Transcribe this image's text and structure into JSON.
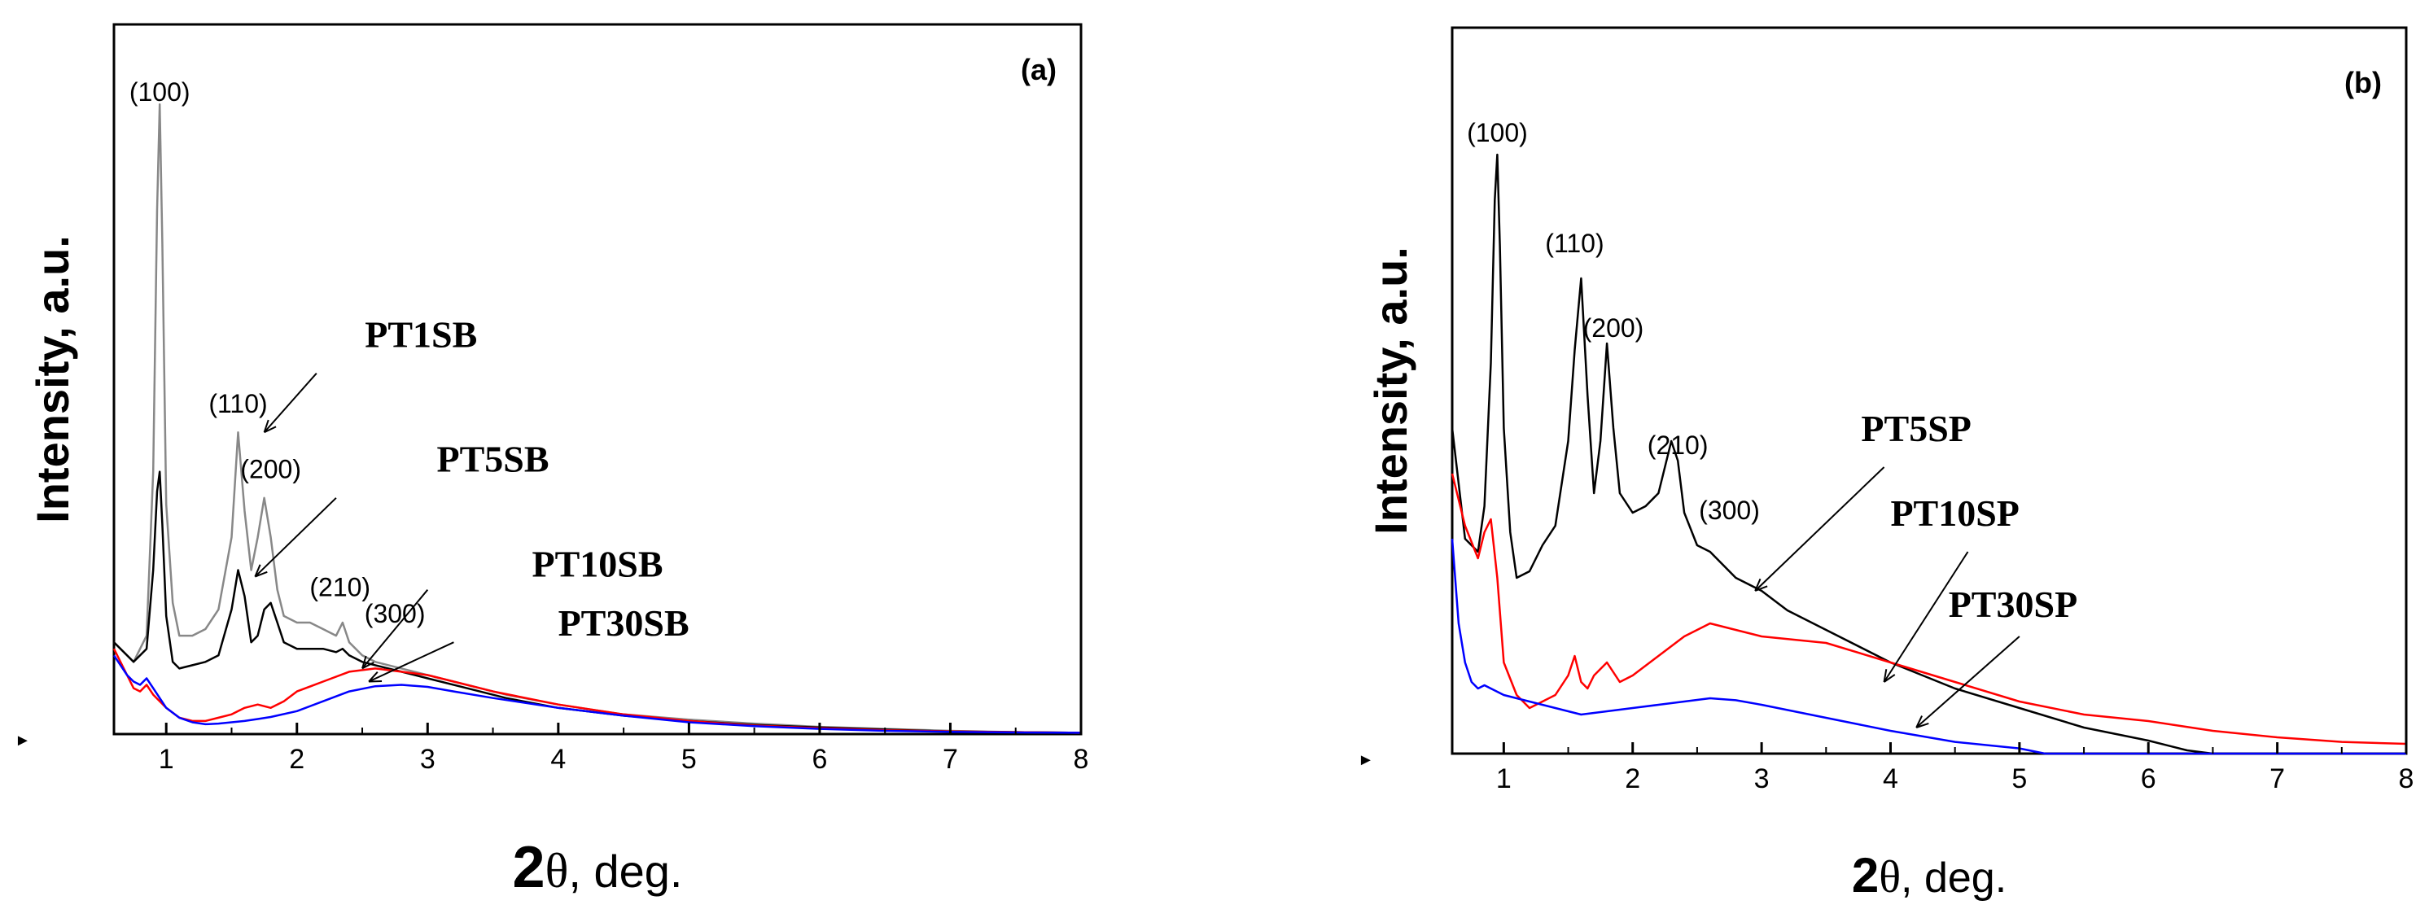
{
  "chart_data": [
    {
      "type": "line",
      "panel_label": "(a)",
      "xlabel_prefix": "2",
      "xlabel_theta": "θ",
      "xlabel_suffix": ", deg.",
      "ylabel": "Intensity, a.u.",
      "xlim": [
        0.6,
        8
      ],
      "ylim": [
        0,
        100
      ],
      "x_ticks": [
        "1",
        "2",
        "3",
        "4",
        "5",
        "6",
        "7",
        "8"
      ],
      "x_tick_values": [
        1,
        2,
        3,
        4,
        5,
        6,
        7,
        8
      ],
      "peak_labels": [
        {
          "text": "(100)",
          "x": 0.95,
          "y": 96.5
        },
        {
          "text": "(110)",
          "x": 1.55,
          "y": 49
        },
        {
          "text": "(200)",
          "x": 1.8,
          "y": 39
        },
        {
          "text": "(210)",
          "x": 2.33,
          "y": 21
        },
        {
          "text": "(300)",
          "x": 2.75,
          "y": 17
        }
      ],
      "series_labels": [
        {
          "text": "PT1SB",
          "x": 2.95,
          "y": 59
        },
        {
          "text": "PT5SB",
          "x": 3.5,
          "y": 40
        },
        {
          "text": "PT10SB",
          "x": 4.3,
          "y": 24
        },
        {
          "text": "PT30SB",
          "x": 4.5,
          "y": 15
        }
      ],
      "arrows": [
        {
          "x1": 2.15,
          "y1": 55,
          "x2": 1.75,
          "y2": 46
        },
        {
          "x1": 2.3,
          "y1": 36,
          "x2": 1.68,
          "y2": 24
        },
        {
          "x1": 3.0,
          "y1": 22,
          "x2": 2.5,
          "y2": 10
        },
        {
          "x1": 3.2,
          "y1": 14,
          "x2": 2.55,
          "y2": 8
        }
      ],
      "series": [
        {
          "name": "PT1SB",
          "color": "#888888",
          "x": [
            0.6,
            0.75,
            0.85,
            0.9,
            0.93,
            0.95,
            0.97,
            1.0,
            1.05,
            1.1,
            1.2,
            1.3,
            1.4,
            1.5,
            1.55,
            1.6,
            1.65,
            1.7,
            1.75,
            1.8,
            1.85,
            1.9,
            2.0,
            2.1,
            2.2,
            2.3,
            2.35,
            2.4,
            2.5,
            2.6,
            2.8,
            3.0,
            3.3,
            3.6,
            4.0,
            4.5,
            5.0,
            5.5,
            6.0,
            6.5,
            7.0,
            7.5,
            8.0
          ],
          "y": [
            14,
            11,
            15,
            40,
            80,
            96,
            75,
            35,
            20,
            15,
            15,
            16,
            19,
            30,
            46,
            34,
            25,
            30,
            36,
            30,
            22,
            18,
            17,
            17,
            16,
            15,
            17,
            14,
            12,
            11,
            10,
            9,
            7.5,
            6,
            4.5,
            3,
            2.2,
            1.6,
            1.1,
            0.8,
            0.5,
            0.3,
            0.2
          ]
        },
        {
          "name": "PT5SB",
          "color": "#000000",
          "x": [
            0.6,
            0.75,
            0.85,
            0.9,
            0.93,
            0.95,
            0.97,
            1.0,
            1.05,
            1.1,
            1.2,
            1.3,
            1.4,
            1.5,
            1.55,
            1.6,
            1.65,
            1.7,
            1.75,
            1.8,
            1.85,
            1.9,
            2.0,
            2.1,
            2.2,
            2.3,
            2.35,
            2.4,
            2.5,
            2.6,
            2.8,
            3.0,
            3.3,
            3.6,
            4.0,
            4.5,
            5.0,
            5.5,
            6.0,
            6.5,
            7.0,
            7.5,
            8.0
          ],
          "y": [
            14,
            11,
            13,
            25,
            37,
            40,
            32,
            18,
            11,
            10,
            10.5,
            11,
            12,
            19,
            25,
            21,
            14,
            15,
            19,
            20,
            17,
            14,
            13,
            13,
            13,
            12.5,
            13,
            12,
            11,
            10.5,
            9.5,
            8.5,
            7,
            5.5,
            4,
            2.8,
            2,
            1.4,
            1,
            0.7,
            0.4,
            0.3,
            0.2
          ]
        },
        {
          "name": "PT10SB",
          "color": "#ff0000",
          "x": [
            0.6,
            0.7,
            0.75,
            0.8,
            0.85,
            0.9,
            1.0,
            1.1,
            1.2,
            1.3,
            1.4,
            1.5,
            1.6,
            1.7,
            1.8,
            1.9,
            2.0,
            2.2,
            2.4,
            2.6,
            2.8,
            3.0,
            3.2,
            3.5,
            4.0,
            4.5,
            5.0,
            5.5,
            6.0,
            6.5,
            7.0,
            7.5,
            8.0
          ],
          "y": [
            13,
            9,
            7,
            6.5,
            7.5,
            6,
            4,
            2.5,
            2,
            2,
            2.5,
            3,
            4,
            4.5,
            4,
            5,
            6.5,
            8,
            9.5,
            10,
            9.5,
            9,
            8,
            6.5,
            4.5,
            3,
            2,
            1.3,
            0.9,
            0.6,
            0.4,
            0.3,
            0.2
          ]
        },
        {
          "name": "PT30SB",
          "color": "#0000ff",
          "x": [
            0.6,
            0.7,
            0.75,
            0.8,
            0.85,
            0.9,
            1.0,
            1.1,
            1.2,
            1.3,
            1.4,
            1.5,
            1.6,
            1.7,
            1.8,
            2.0,
            2.2,
            2.4,
            2.6,
            2.8,
            3.0,
            3.2,
            3.5,
            4.0,
            4.5,
            5.0,
            5.5,
            6.0,
            6.5,
            7.0,
            7.5,
            8.0
          ],
          "y": [
            12,
            9,
            8,
            7.5,
            8.5,
            7,
            4,
            2.5,
            1.8,
            1.5,
            1.6,
            1.8,
            2,
            2.3,
            2.6,
            3.5,
            5,
            6.5,
            7.3,
            7.5,
            7.2,
            6.5,
            5.5,
            4,
            2.8,
            1.8,
            1.2,
            0.8,
            0.5,
            0.35,
            0.25,
            0.2
          ]
        }
      ]
    },
    {
      "type": "line",
      "panel_label": "(b)",
      "xlabel_prefix": "2",
      "xlabel_theta": "θ",
      "xlabel_suffix": ", deg.",
      "ylabel": "Intensity, a.u.",
      "xlim": [
        0.6,
        8
      ],
      "ylim": [
        0,
        100
      ],
      "x_ticks": [
        "1",
        "2",
        "3",
        "4",
        "5",
        "6",
        "7",
        "8"
      ],
      "x_tick_values": [
        1,
        2,
        3,
        4,
        5,
        6,
        7,
        8
      ],
      "peak_labels": [
        {
          "text": "(100)",
          "x": 0.95,
          "y": 94
        },
        {
          "text": "(110)",
          "x": 1.55,
          "y": 77
        },
        {
          "text": "(200)",
          "x": 1.85,
          "y": 64
        },
        {
          "text": "(210)",
          "x": 2.35,
          "y": 46
        },
        {
          "text": "(300)",
          "x": 2.75,
          "y": 36
        }
      ],
      "series_labels": [
        {
          "text": "PT5SP",
          "x": 4.2,
          "y": 48
        },
        {
          "text": "PT10SP",
          "x": 4.5,
          "y": 35
        },
        {
          "text": "PT30SP",
          "x": 4.95,
          "y": 21
        }
      ],
      "arrows": [
        {
          "x1": 3.95,
          "y1": 44,
          "x2": 2.95,
          "y2": 25
        },
        {
          "x1": 4.6,
          "y1": 31,
          "x2": 3.95,
          "y2": 11
        },
        {
          "x1": 5.0,
          "y1": 18,
          "x2": 4.2,
          "y2": 4
        }
      ],
      "series": [
        {
          "name": "PT5SP",
          "color": "#000000",
          "x": [
            0.6,
            0.7,
            0.8,
            0.85,
            0.9,
            0.93,
            0.95,
            0.97,
            1.0,
            1.05,
            1.1,
            1.2,
            1.3,
            1.4,
            1.5,
            1.55,
            1.6,
            1.65,
            1.7,
            1.75,
            1.8,
            1.85,
            1.9,
            2.0,
            2.1,
            2.2,
            2.3,
            2.35,
            2.4,
            2.5,
            2.6,
            2.7,
            2.8,
            3.0,
            3.2,
            3.5,
            4.0,
            4.5,
            5.0,
            5.5,
            6.0,
            6.3,
            6.5,
            7.0,
            7.5,
            8.0
          ],
          "y": [
            50,
            33,
            31,
            38,
            60,
            85,
            92,
            78,
            50,
            34,
            27,
            28,
            32,
            35,
            48,
            62,
            73,
            55,
            40,
            48,
            63,
            50,
            40,
            37,
            38,
            40,
            48,
            45,
            37,
            32,
            31,
            29,
            27,
            25,
            22,
            19,
            14,
            10,
            7,
            4,
            2,
            0.5,
            0,
            0,
            0,
            0
          ]
        },
        {
          "name": "PT10SP",
          "color": "#ff0000",
          "x": [
            0.6,
            0.7,
            0.8,
            0.85,
            0.9,
            0.95,
            1.0,
            1.1,
            1.2,
            1.3,
            1.4,
            1.5,
            1.55,
            1.6,
            1.65,
            1.7,
            1.8,
            1.9,
            2.0,
            2.2,
            2.4,
            2.6,
            2.8,
            3.0,
            3.5,
            4.0,
            4.5,
            5.0,
            5.5,
            6.0,
            6.5,
            7.0,
            7.5,
            8.0
          ],
          "y": [
            43,
            35,
            30,
            34,
            36,
            27,
            14,
            9,
            7,
            8,
            9,
            12,
            15,
            11,
            10,
            12,
            14,
            11,
            12,
            15,
            18,
            20,
            19,
            18,
            17,
            14,
            11,
            8,
            6,
            5,
            3.5,
            2.5,
            1.8,
            1.5
          ]
        },
        {
          "name": "PT30SP",
          "color": "#0000ff",
          "x": [
            0.6,
            0.65,
            0.7,
            0.75,
            0.8,
            0.85,
            0.9,
            1.0,
            1.2,
            1.4,
            1.6,
            1.8,
            2.0,
            2.2,
            2.4,
            2.6,
            2.8,
            3.0,
            3.5,
            4.0,
            4.5,
            5.0,
            5.2,
            5.5,
            6.0,
            6.5,
            7.0,
            7.5,
            8.0
          ],
          "y": [
            33,
            20,
            14,
            11,
            10,
            10.5,
            10,
            9,
            8,
            7,
            6,
            6.5,
            7,
            7.5,
            8,
            8.5,
            8.2,
            7.5,
            5.5,
            3.5,
            1.8,
            0.8,
            0,
            0,
            0,
            0,
            0,
            0,
            0
          ]
        }
      ]
    }
  ]
}
